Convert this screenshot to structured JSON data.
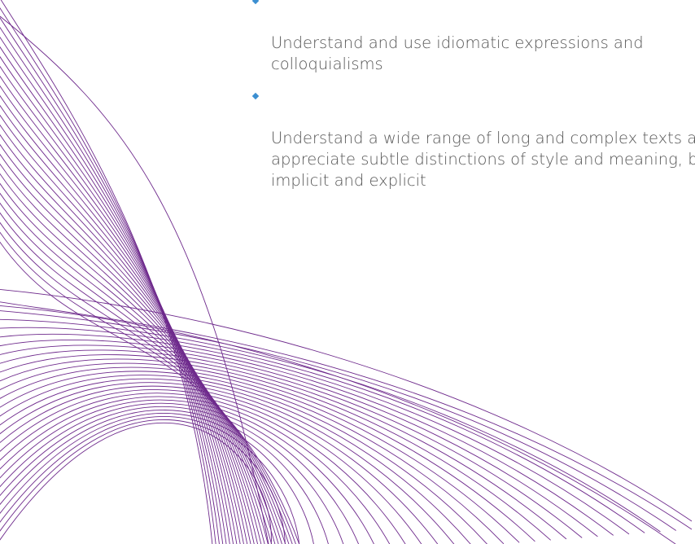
{
  "bullets": [
    {
      "text": "Understand and use idiomatic expressions and\ncolloquialisms"
    },
    {
      "text": "Understand a wide range of long and complex texts and\nappreciate subtle distinctions of style and meaning, both\nimplicit and explicit"
    }
  ],
  "colors": {
    "accent_line": "#6e2a8c",
    "bullet_marker": "#3b8fd1",
    "body_text": "#555555"
  },
  "decoration": {
    "icon": "purple-wave-lines"
  }
}
